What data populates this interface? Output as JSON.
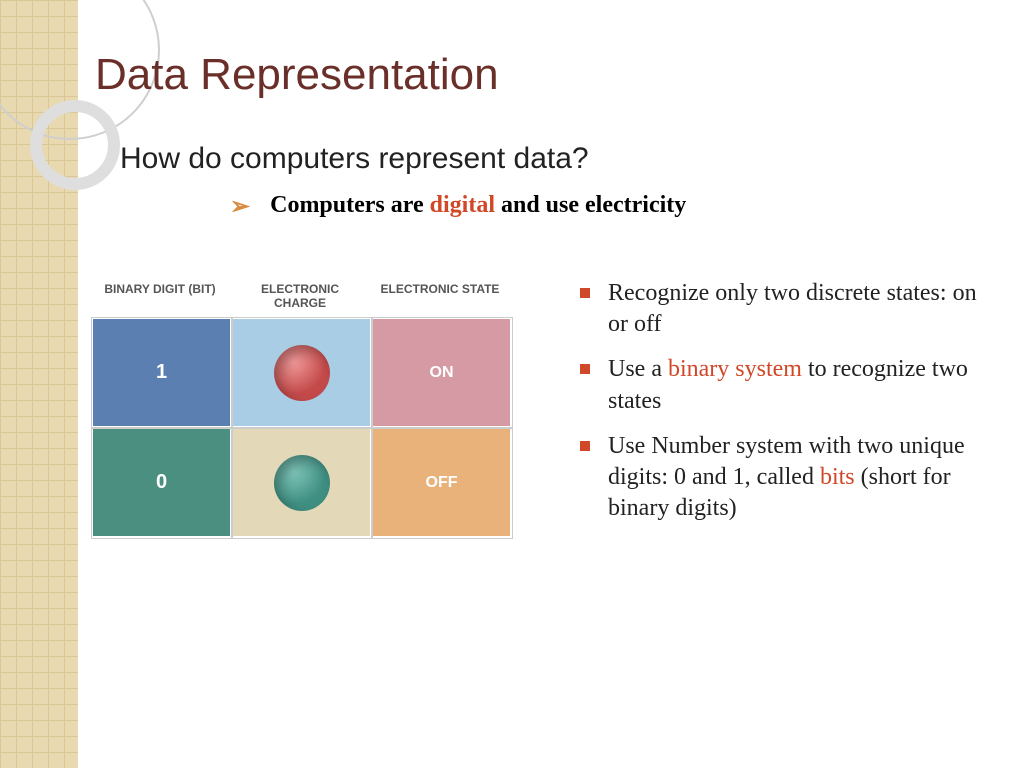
{
  "title": "Data Representation",
  "subheading": "How do computers represent data?",
  "mainBullet": {
    "pre": "Computers are ",
    "highlight": "digital",
    "post": " and use electricity"
  },
  "table": {
    "headers": [
      "BINARY DIGIT (BIT)",
      "ELECTRONIC CHARGE",
      "ELECTRONIC STATE"
    ],
    "rows": [
      {
        "bit": "1",
        "state": "ON",
        "bitBg": "#5b7fb0",
        "chargeBg": "#a8cde5",
        "stateBg": "#d59aa3",
        "sphere": "#c44a4a",
        "sphereHi": "#f09a9a"
      },
      {
        "bit": "0",
        "state": "OFF",
        "bitBg": "#4a8f7f",
        "chargeBg": "#e3d9b8",
        "stateBg": "#e8b27a",
        "sphere": "#3f8f82",
        "sphereHi": "#7fc4b8"
      }
    ]
  },
  "bullets": [
    {
      "pre": "Recognize only two discrete states: on or off",
      "hl": "",
      "post": ""
    },
    {
      "pre": "Use a ",
      "hl": "binary system",
      "post": " to recognize two states"
    },
    {
      "pre": "Use Number system with two unique digits: 0 and 1, called ",
      "hl": "bits",
      "post": " (short for binary digits)"
    }
  ],
  "colors": {
    "titleColor": "#6b2f2a",
    "accent": "#d04828",
    "chevron": "#d98b44",
    "stripBg": "#e8d9b0"
  }
}
